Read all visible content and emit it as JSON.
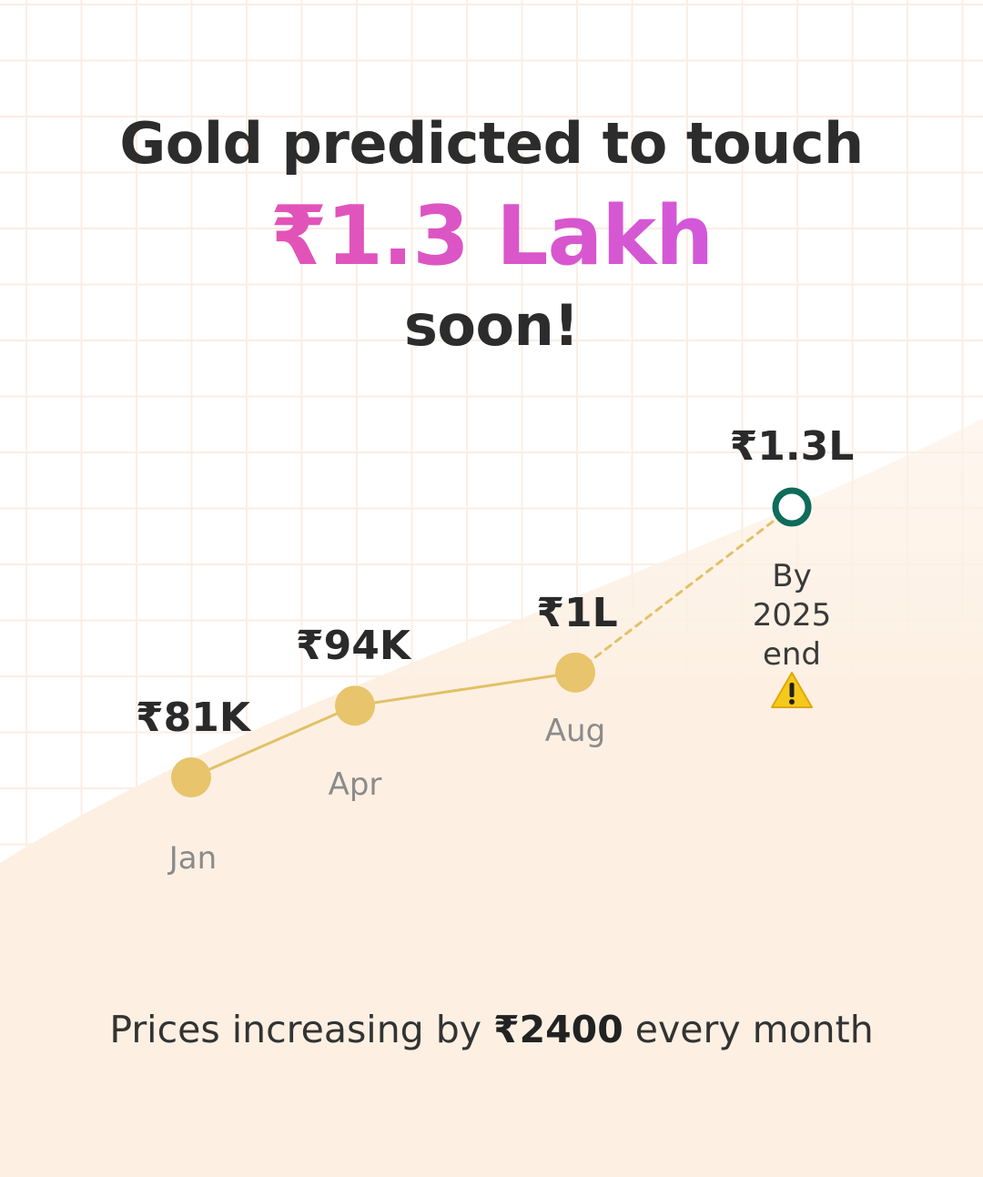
{
  "headline": {
    "line1": "Gold predicted to touch",
    "highlight": "₹1.3 Lakh",
    "line3": "soon!"
  },
  "footer": {
    "prefix": "Prices increasing by ",
    "amount": "₹2400",
    "suffix": " every month"
  },
  "colors": {
    "actual_point": "#e8c46c",
    "actual_line": "#e2c166",
    "forecast_point_ring": "#0f6b5c",
    "highlight_gradient": [
      "#ee4fa0",
      "#c75cf0"
    ],
    "background_warm": "#fdf0e3"
  },
  "icons": {
    "forecast_warning": "warning-icon"
  },
  "chart_data": {
    "type": "line",
    "title": "",
    "xlabel": "",
    "ylabel": "",
    "ylim": [
      70000,
      135000
    ],
    "grid": false,
    "points": [
      {
        "category": "Jan",
        "value": 81000,
        "label": "₹81K",
        "projected": false
      },
      {
        "category": "Apr",
        "value": 94000,
        "label": "₹94K",
        "projected": false
      },
      {
        "category": "Aug",
        "value": 100000,
        "label": "₹1L",
        "projected": false
      },
      {
        "category": "By 2025 end",
        "category_lines": [
          "By",
          "2025",
          "end"
        ],
        "value": 130000,
        "label": "₹1.3L",
        "projected": true
      }
    ]
  }
}
